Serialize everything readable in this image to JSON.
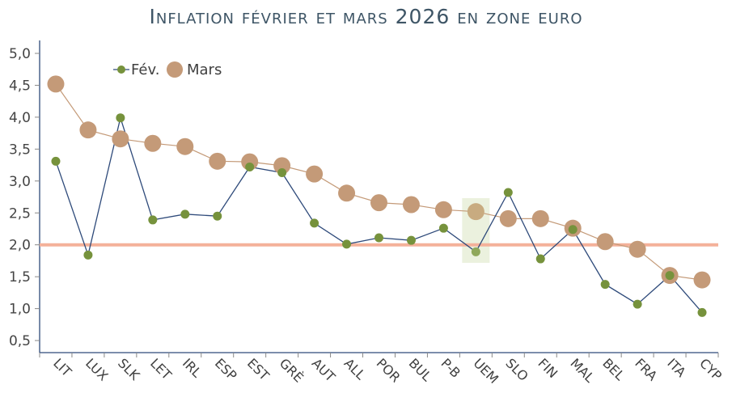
{
  "chart_data": {
    "type": "line",
    "title": "Inflation février et mars 2026 en zone euro",
    "xlabel": "",
    "ylabel": "",
    "ylim": [
      0.25,
      5.2
    ],
    "yticks": [
      "5,0",
      "4,5",
      "4,0",
      "3,5",
      "3,0",
      "2,5",
      "2,0",
      "1,5",
      "1,0",
      "0,5"
    ],
    "ytick_values": [
      5.0,
      4.5,
      4.0,
      3.5,
      3.0,
      2.5,
      2.0,
      1.5,
      1.0,
      0.5
    ],
    "categories": [
      "LIT",
      "LUX",
      "SLK",
      "LET",
      "IRL",
      "ESP",
      "EST",
      "GRÈ",
      "AUT",
      "ALL",
      "POR",
      "BUL",
      "P-B",
      "UEM",
      "SLO",
      "FIN",
      "MAL",
      "BEL",
      "FRA",
      "ITA",
      "CYP"
    ],
    "series": [
      {
        "name": "Fév.",
        "color": "#76923c",
        "line_color": "#2e4a7a",
        "values": [
          3.31,
          1.84,
          3.99,
          2.39,
          2.48,
          2.45,
          3.22,
          3.13,
          2.34,
          2.01,
          2.11,
          2.07,
          2.26,
          1.89,
          2.82,
          1.78,
          2.24,
          1.38,
          1.07,
          1.52,
          0.94
        ]
      },
      {
        "name": "Mars",
        "color": "#c49a78",
        "line_color": "#c49a78",
        "values": [
          4.52,
          3.8,
          3.66,
          3.59,
          3.54,
          3.31,
          3.3,
          3.24,
          3.11,
          2.81,
          2.66,
          2.63,
          2.55,
          2.52,
          2.41,
          2.41,
          2.26,
          2.05,
          1.93,
          1.52,
          1.45
        ]
      }
    ],
    "reference_line": {
      "value": 2.0,
      "color": "#f4b19a"
    },
    "highlight_category": "UEM",
    "highlight_color": "#ebf1de",
    "legend": {
      "position": "top-left",
      "entries": [
        "Fév.",
        "Mars"
      ]
    },
    "grid": false
  }
}
